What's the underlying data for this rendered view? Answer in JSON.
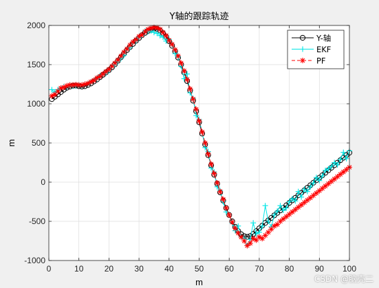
{
  "watermark": "CSDN @脑壳二",
  "chart_data": {
    "type": "line",
    "title": "Y轴的跟踪轨迹",
    "xlabel": "m",
    "ylabel": "m",
    "xlim": [
      0,
      100
    ],
    "ylim": [
      -1000,
      2000
    ],
    "xticks": [
      0,
      10,
      20,
      30,
      40,
      50,
      60,
      70,
      80,
      90,
      100
    ],
    "yticks": [
      -1000,
      -500,
      0,
      500,
      1000,
      1500,
      2000
    ],
    "grid": true,
    "legend_position": "top-right",
    "colors": {
      "y_axis": "#000000",
      "ekf": "#00e5e5",
      "pf": "#ff0000"
    },
    "x": [
      1,
      2,
      3,
      4,
      5,
      6,
      7,
      8,
      9,
      10,
      11,
      12,
      13,
      14,
      15,
      16,
      17,
      18,
      19,
      20,
      21,
      22,
      23,
      24,
      25,
      26,
      27,
      28,
      29,
      30,
      31,
      32,
      33,
      34,
      35,
      36,
      37,
      38,
      39,
      40,
      41,
      42,
      43,
      44,
      45,
      46,
      47,
      48,
      49,
      50,
      51,
      52,
      53,
      54,
      55,
      56,
      57,
      58,
      59,
      60,
      61,
      62,
      63,
      64,
      65,
      66,
      67,
      68,
      69,
      70,
      71,
      72,
      73,
      74,
      75,
      76,
      77,
      78,
      79,
      80,
      81,
      82,
      83,
      84,
      85,
      86,
      87,
      88,
      89,
      90,
      91,
      92,
      93,
      94,
      95,
      96,
      97,
      98,
      99,
      100
    ],
    "series": [
      {
        "name": "Y-轴",
        "marker": "circle",
        "values": [
          1060,
          1090,
          1120,
          1150,
          1180,
          1205,
          1220,
          1230,
          1232,
          1225,
          1220,
          1225,
          1240,
          1260,
          1285,
          1310,
          1340,
          1370,
          1400,
          1430,
          1465,
          1505,
          1550,
          1595,
          1640,
          1685,
          1725,
          1765,
          1805,
          1840,
          1875,
          1905,
          1930,
          1950,
          1960,
          1955,
          1935,
          1900,
          1855,
          1800,
          1740,
          1670,
          1590,
          1500,
          1400,
          1290,
          1170,
          1040,
          905,
          765,
          620,
          480,
          345,
          215,
          95,
          -20,
          -130,
          -235,
          -330,
          -420,
          -500,
          -570,
          -625,
          -665,
          -690,
          -698,
          -688,
          -662,
          -625,
          -590,
          -555,
          -520,
          -488,
          -456,
          -424,
          -392,
          -360,
          -328,
          -296,
          -264,
          -232,
          -200,
          -168,
          -136,
          -104,
          -72,
          -40,
          -8,
          24,
          56,
          88,
          120,
          152,
          184,
          216,
          248,
          280,
          312,
          344,
          376
        ]
      },
      {
        "name": "EKF",
        "marker": "plus",
        "values": [
          1180,
          1150,
          1180,
          1200,
          1220,
          1215,
          1240,
          1225,
          1230,
          1240,
          1235,
          1250,
          1255,
          1280,
          1300,
          1320,
          1360,
          1380,
          1390,
          1420,
          1480,
          1500,
          1540,
          1580,
          1620,
          1700,
          1720,
          1790,
          1800,
          1850,
          1870,
          1930,
          1920,
          1930,
          1910,
          1900,
          1870,
          1850,
          1800,
          1820,
          1760,
          1640,
          1600,
          1480,
          1320,
          1380,
          1140,
          1070,
          850,
          800,
          640,
          440,
          390,
          180,
          130,
          -60,
          -110,
          -250,
          -380,
          -420,
          -520,
          -620,
          -560,
          -700,
          -720,
          -810,
          -730,
          -520,
          -660,
          -640,
          -560,
          -300,
          -500,
          -570,
          -420,
          -370,
          -300,
          -360,
          -330,
          -250,
          -210,
          -240,
          -120,
          -190,
          -90,
          -120,
          -60,
          -10,
          60,
          20,
          80,
          150,
          170,
          200,
          250,
          220,
          290,
          380,
          300,
          400
        ]
      },
      {
        "name": "PF",
        "marker": "star",
        "values": [
          1100,
          1120,
          1160,
          1200,
          1210,
          1230,
          1240,
          1240,
          1245,
          1240,
          1240,
          1250,
          1260,
          1280,
          1300,
          1330,
          1350,
          1380,
          1410,
          1440,
          1480,
          1520,
          1560,
          1610,
          1660,
          1700,
          1750,
          1790,
          1820,
          1860,
          1880,
          1920,
          1950,
          1965,
          1975,
          1970,
          1950,
          1910,
          1870,
          1810,
          1760,
          1690,
          1610,
          1520,
          1420,
          1310,
          1190,
          1060,
          930,
          780,
          640,
          500,
          360,
          230,
          110,
          -10,
          -120,
          -220,
          -330,
          -420,
          -510,
          -590,
          -650,
          -700,
          -750,
          -810,
          -780,
          -720,
          -740,
          -700,
          -720,
          -680,
          -640,
          -600,
          -560,
          -540,
          -500,
          -470,
          -440,
          -410,
          -380,
          -350,
          -320,
          -290,
          -260,
          -230,
          -200,
          -170,
          -140,
          -110,
          -80,
          -50,
          -20,
          10,
          40,
          70,
          100,
          130,
          160,
          190
        ]
      }
    ]
  }
}
